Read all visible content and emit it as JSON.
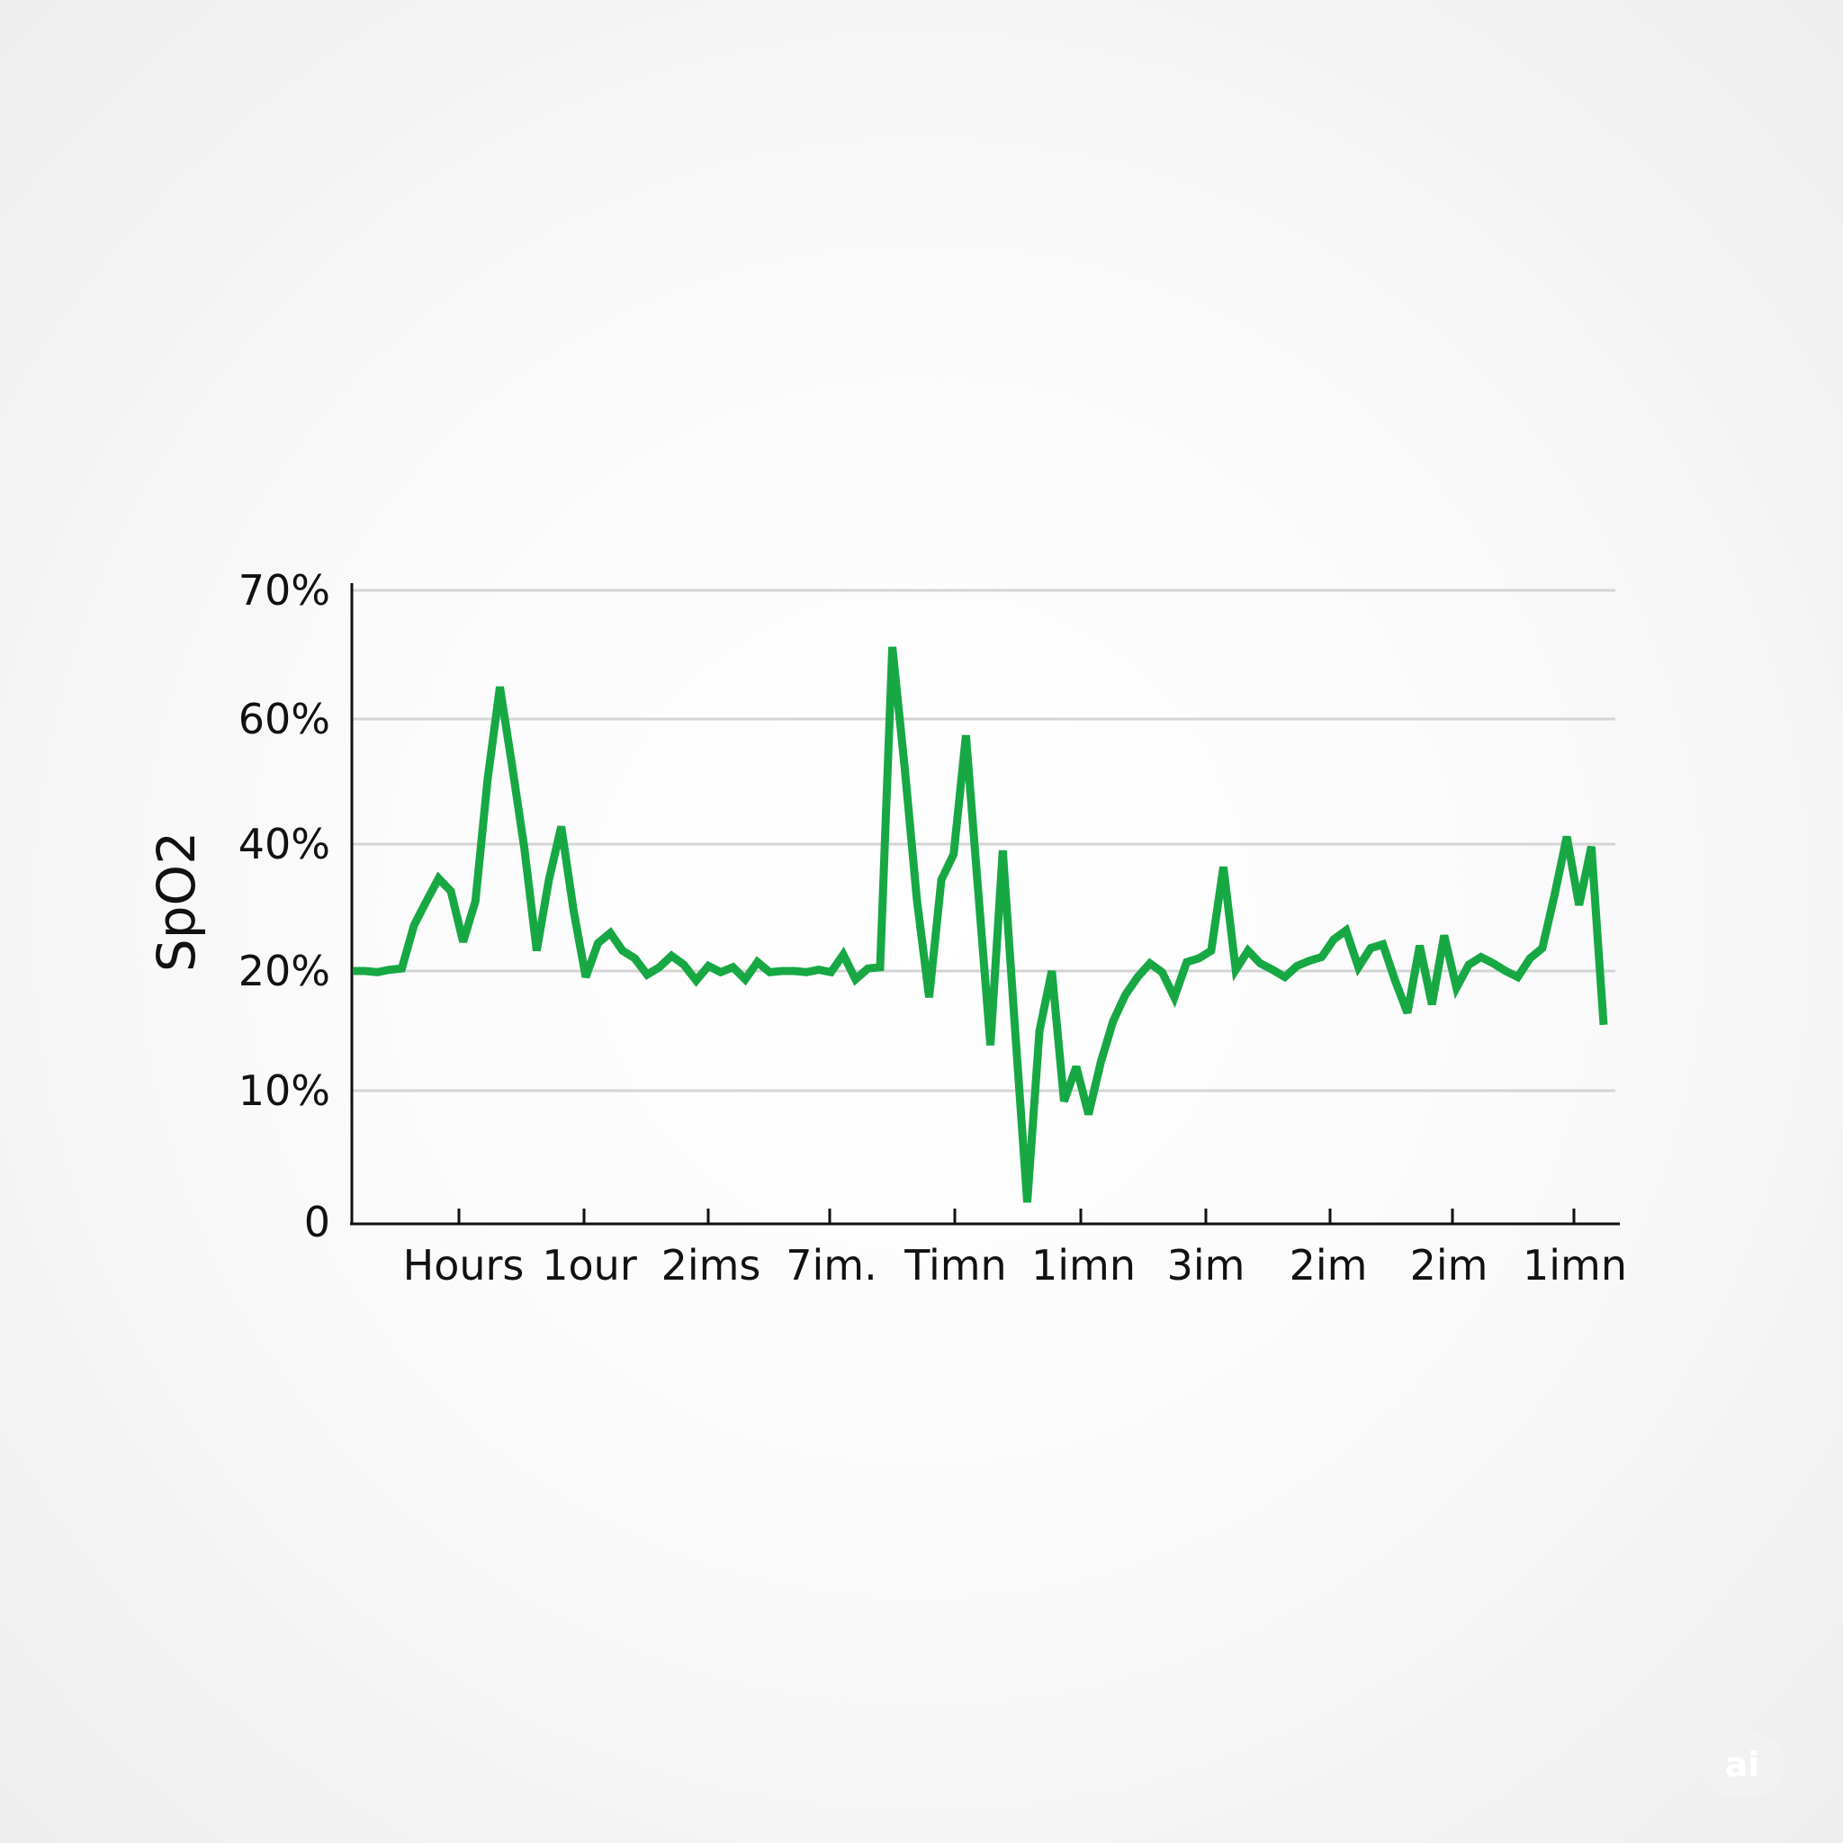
{
  "chart_data": {
    "type": "line",
    "title": "",
    "ylabel": "SpO2",
    "xlabel": "",
    "y_ticks": [
      {
        "value": 0,
        "label": "0"
      },
      {
        "value": 1,
        "label": "10%"
      },
      {
        "value": 2,
        "label": "20%"
      },
      {
        "value": 3,
        "label": "40%"
      },
      {
        "value": 4,
        "label": "60%"
      },
      {
        "value": 5,
        "label": "70%"
      }
    ],
    "ylim": [
      0,
      5
    ],
    "x_tick_labels": [
      "Hours",
      "1our",
      "2ims",
      "7im.",
      "Timn",
      "1imn",
      "3im",
      "2im",
      "2im",
      "1imn"
    ],
    "grid": true,
    "line_color": "#17a844",
    "series": [
      {
        "values": [
          [
            0,
            2.0
          ],
          [
            1,
            2.0
          ],
          [
            2,
            1.99
          ],
          [
            3,
            2.01
          ],
          [
            4,
            2.02
          ],
          [
            5,
            2.36
          ],
          [
            6,
            2.55
          ],
          [
            7,
            2.73
          ],
          [
            8,
            2.63
          ],
          [
            9,
            2.23
          ],
          [
            10,
            2.55
          ],
          [
            11,
            3.52
          ],
          [
            12,
            4.25
          ],
          [
            13,
            3.62
          ],
          [
            14,
            2.96
          ],
          [
            15,
            2.16
          ],
          [
            16,
            2.72
          ],
          [
            17,
            3.14
          ],
          [
            18,
            2.48
          ],
          [
            19,
            1.95
          ],
          [
            20,
            2.22
          ],
          [
            21,
            2.3
          ],
          [
            22,
            2.16
          ],
          [
            23,
            2.1
          ],
          [
            24,
            1.97
          ],
          [
            25,
            2.03
          ],
          [
            26,
            2.12
          ],
          [
            27,
            2.05
          ],
          [
            28,
            1.92
          ],
          [
            29,
            2.04
          ],
          [
            30,
            1.99
          ],
          [
            31,
            2.03
          ],
          [
            32,
            1.93
          ],
          [
            33,
            2.07
          ],
          [
            34,
            1.99
          ],
          [
            35,
            2.0
          ],
          [
            36,
            2.0
          ],
          [
            37,
            1.99
          ],
          [
            38,
            2.01
          ],
          [
            39,
            1.99
          ],
          [
            40,
            2.13
          ],
          [
            41,
            1.93
          ],
          [
            42,
            2.02
          ],
          [
            43,
            2.03
          ],
          [
            44,
            4.56
          ],
          [
            45,
            3.62
          ],
          [
            46,
            2.56
          ],
          [
            47,
            1.78
          ],
          [
            48,
            2.72
          ],
          [
            49,
            2.92
          ],
          [
            50,
            3.87
          ],
          [
            51,
            2.63
          ],
          [
            52,
            1.38
          ],
          [
            53,
            2.95
          ],
          [
            54,
            1.52
          ],
          [
            55,
            0.15
          ],
          [
            56,
            1.5
          ],
          [
            57,
            2.0
          ],
          [
            58,
            0.92
          ],
          [
            59,
            1.2
          ],
          [
            60,
            0.82
          ],
          [
            61,
            1.24
          ],
          [
            62,
            1.58
          ],
          [
            63,
            1.8
          ],
          [
            64,
            1.95
          ],
          [
            65,
            2.06
          ],
          [
            66,
            1.99
          ],
          [
            67,
            1.78
          ],
          [
            68,
            2.07
          ],
          [
            69,
            2.1
          ],
          [
            70,
            2.16
          ],
          [
            71,
            2.82
          ],
          [
            72,
            2.01
          ],
          [
            73,
            2.16
          ],
          [
            74,
            2.06
          ],
          [
            75,
            2.01
          ],
          [
            76,
            1.95
          ],
          [
            77,
            2.04
          ],
          [
            78,
            2.08
          ],
          [
            79,
            2.11
          ],
          [
            80,
            2.25
          ],
          [
            81,
            2.32
          ],
          [
            82,
            2.03
          ],
          [
            83,
            2.18
          ],
          [
            84,
            2.21
          ],
          [
            85,
            1.92
          ],
          [
            86,
            1.65
          ],
          [
            87,
            2.2
          ],
          [
            88,
            1.72
          ],
          [
            89,
            2.28
          ],
          [
            90,
            1.86
          ],
          [
            91,
            2.05
          ],
          [
            92,
            2.11
          ],
          [
            93,
            2.06
          ],
          [
            94,
            2.0
          ],
          [
            95,
            1.95
          ],
          [
            96,
            2.1
          ],
          [
            97,
            2.18
          ],
          [
            98,
            2.6
          ],
          [
            99,
            3.06
          ],
          [
            100,
            2.52
          ],
          [
            101,
            2.98
          ],
          [
            102,
            1.55
          ]
        ]
      }
    ]
  },
  "watermark_text": "ai"
}
